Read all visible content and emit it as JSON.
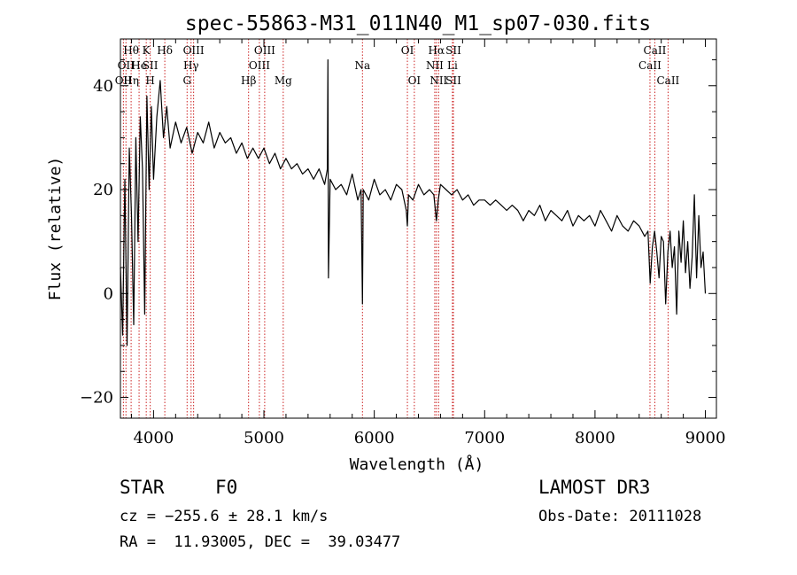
{
  "chart_data": {
    "type": "line",
    "title": "spec-55863-M31_011N40_M1_sp07-030.fits",
    "xlabel": "Wavelength (Å)",
    "ylabel": "Flux (relative)",
    "xlim": [
      3700,
      9100
    ],
    "ylim": [
      -24,
      49
    ],
    "xticks": [
      4000,
      5000,
      6000,
      7000,
      8000,
      9000
    ],
    "yticks": [
      -20,
      0,
      20,
      40
    ],
    "series": [
      {
        "name": "flux",
        "x": [
          3700,
          3720,
          3740,
          3760,
          3780,
          3800,
          3820,
          3840,
          3860,
          3880,
          3900,
          3920,
          3940,
          3960,
          3980,
          4000,
          4030,
          4060,
          4090,
          4120,
          4150,
          4200,
          4250,
          4300,
          4350,
          4400,
          4450,
          4500,
          4550,
          4600,
          4650,
          4700,
          4750,
          4800,
          4850,
          4900,
          4950,
          5000,
          5050,
          5100,
          5150,
          5200,
          5250,
          5300,
          5350,
          5400,
          5450,
          5500,
          5550,
          5575,
          5580,
          5585,
          5600,
          5650,
          5700,
          5750,
          5800,
          5850,
          5880,
          5893,
          5900,
          5950,
          6000,
          6050,
          6100,
          6150,
          6200,
          6250,
          6290,
          6300,
          6310,
          6350,
          6400,
          6450,
          6500,
          6540,
          6563,
          6580,
          6600,
          6650,
          6700,
          6750,
          6800,
          6850,
          6900,
          6950,
          7000,
          7050,
          7100,
          7150,
          7200,
          7250,
          7300,
          7350,
          7400,
          7450,
          7500,
          7550,
          7600,
          7650,
          7700,
          7750,
          7800,
          7850,
          7900,
          7950,
          8000,
          8050,
          8100,
          8150,
          8200,
          8250,
          8300,
          8350,
          8400,
          8450,
          8480,
          8500,
          8520,
          8540,
          8560,
          8580,
          8600,
          8620,
          8640,
          8660,
          8680,
          8700,
          8720,
          8740,
          8760,
          8780,
          8800,
          8820,
          8840,
          8860,
          8880,
          8900,
          8920,
          8940,
          8960,
          8980,
          9000
        ],
        "y": [
          5,
          -8,
          22,
          -10,
          28,
          15,
          -6,
          30,
          10,
          34,
          24,
          -4,
          38,
          20,
          36,
          22,
          34,
          41,
          30,
          36,
          28,
          33,
          29,
          32,
          27,
          31,
          29,
          33,
          28,
          31,
          29,
          30,
          27,
          29,
          26,
          28,
          26,
          28,
          25,
          27,
          24,
          26,
          24,
          25,
          23,
          24,
          22,
          24,
          21,
          24,
          45,
          3,
          22,
          20,
          21,
          19,
          23,
          18,
          20,
          -2,
          20,
          18,
          22,
          19,
          20,
          18,
          21,
          20,
          16,
          13,
          19,
          18,
          21,
          19,
          20,
          19,
          14,
          18,
          21,
          20,
          19,
          20,
          18,
          19,
          17,
          18,
          18,
          17,
          18,
          17,
          16,
          17,
          16,
          14,
          16,
          15,
          17,
          14,
          16,
          15,
          14,
          16,
          13,
          15,
          14,
          15,
          13,
          16,
          14,
          12,
          15,
          13,
          12,
          14,
          13,
          11,
          12,
          2,
          9,
          12,
          8,
          3,
          11,
          10,
          -2,
          8,
          12,
          5,
          9,
          -4,
          12,
          6,
          14,
          4,
          10,
          1,
          7,
          19,
          3,
          15,
          5,
          8,
          0
        ]
      }
    ],
    "lines": [
      {
        "wavelength": 3727,
        "rows": [
          3
        ],
        "labels": [
          "OII"
        ]
      },
      {
        "wavelength": 3750,
        "rows": [
          2
        ],
        "labels": [
          "OII"
        ]
      },
      {
        "wavelength": 3797,
        "rows": [
          1,
          3
        ],
        "labels": [
          "Hθ",
          "Hη"
        ]
      },
      {
        "wavelength": 3869,
        "rows": [
          2
        ],
        "labels": [
          "He"
        ]
      },
      {
        "wavelength": 3934,
        "rows": [
          1
        ],
        "labels": [
          "K"
        ]
      },
      {
        "wavelength": 3970,
        "rows": [
          2,
          3
        ],
        "labels": [
          "SII",
          "H"
        ]
      },
      {
        "wavelength": 4102,
        "rows": [
          1
        ],
        "labels": [
          "Hδ"
        ]
      },
      {
        "wavelength": 4304,
        "rows": [
          3
        ],
        "labels": [
          "G"
        ]
      },
      {
        "wavelength": 4340,
        "rows": [
          2
        ],
        "labels": [
          "Hγ"
        ]
      },
      {
        "wavelength": 4363,
        "rows": [
          1
        ],
        "labels": [
          "OIII"
        ]
      },
      {
        "wavelength": 4861,
        "rows": [
          3
        ],
        "labels": [
          "Hβ"
        ]
      },
      {
        "wavelength": 4959,
        "rows": [
          2
        ],
        "labels": [
          "OIII"
        ]
      },
      {
        "wavelength": 5007,
        "rows": [
          1
        ],
        "labels": [
          "OIII"
        ]
      },
      {
        "wavelength": 5175,
        "rows": [
          3
        ],
        "labels": [
          "Mg"
        ]
      },
      {
        "wavelength": 5893,
        "rows": [
          2
        ],
        "labels": [
          "Na"
        ]
      },
      {
        "wavelength": 6300,
        "rows": [
          1
        ],
        "labels": [
          "OI"
        ]
      },
      {
        "wavelength": 6363,
        "rows": [
          3
        ],
        "labels": [
          "OI"
        ]
      },
      {
        "wavelength": 6548,
        "rows": [
          2
        ],
        "labels": [
          "NII"
        ]
      },
      {
        "wavelength": 6563,
        "rows": [
          1
        ],
        "labels": [
          "Hα"
        ]
      },
      {
        "wavelength": 6583,
        "rows": [
          3
        ],
        "labels": [
          "NII"
        ]
      },
      {
        "wavelength": 6708,
        "rows": [
          2
        ],
        "labels": [
          "Li"
        ]
      },
      {
        "wavelength": 6717,
        "rows": [
          1,
          3
        ],
        "labels": [
          "SII",
          "SII"
        ]
      },
      {
        "wavelength": 8498,
        "rows": [
          2
        ],
        "labels": [
          "CaII"
        ]
      },
      {
        "wavelength": 8542,
        "rows": [
          1
        ],
        "labels": [
          "CaII"
        ]
      },
      {
        "wavelength": 8662,
        "rows": [
          3
        ],
        "labels": [
          "CaII"
        ]
      }
    ]
  },
  "info": {
    "class_label": "STAR",
    "subclass": "F0",
    "survey": "LAMOST DR3",
    "cz_line": "cz = −255.6 ± 28.1 km/s",
    "obs_date": "Obs-Date: 20111028",
    "coords": "RA =  11.93005, DEC =  39.03477"
  },
  "colors": {
    "spectrum": "#000000",
    "line_marker": "#cc2222",
    "frame": "#000000"
  }
}
